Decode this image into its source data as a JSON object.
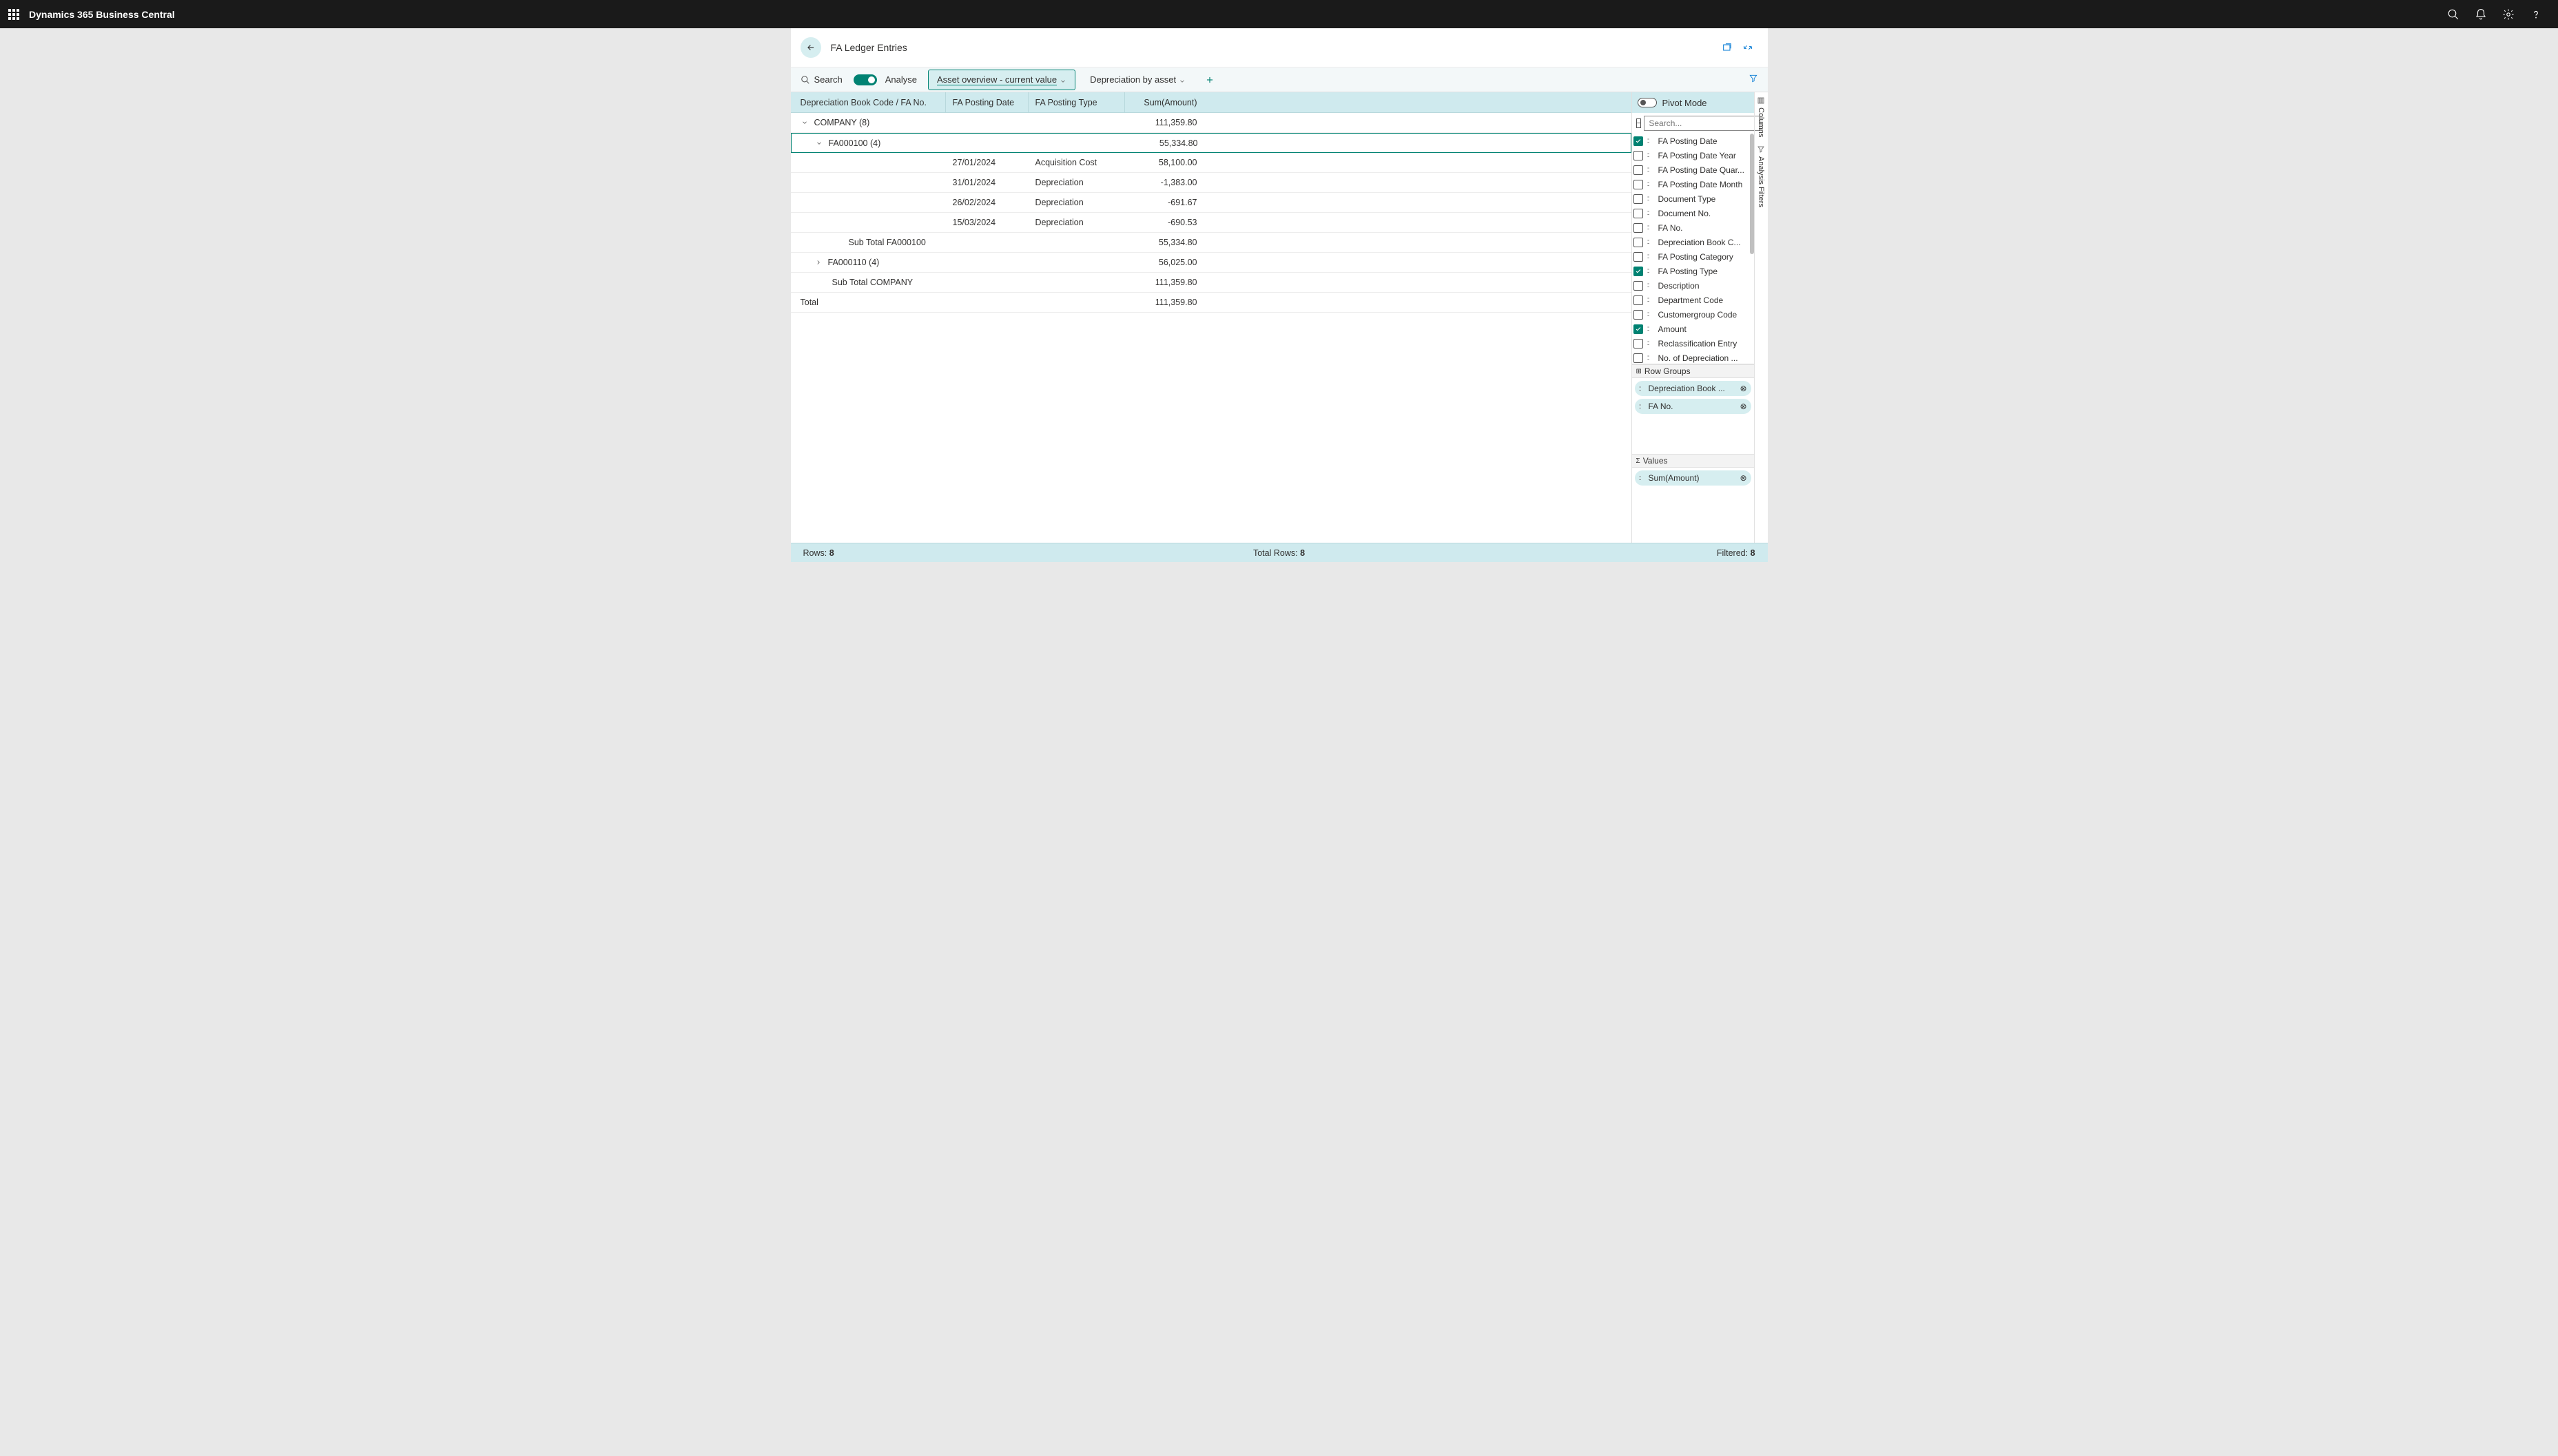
{
  "app": {
    "title": "Dynamics 365 Business Central"
  },
  "page": {
    "title": "FA Ledger Entries"
  },
  "toolbar": {
    "search": "Search",
    "analyse": "Analyse",
    "tabs": [
      {
        "label": "Asset overview - current value",
        "active": true
      },
      {
        "label": "Depreciation by asset",
        "active": false
      }
    ]
  },
  "grid": {
    "columns": [
      "Depreciation Book Code / FA No.",
      "FA Posting Date",
      "FA Posting Type",
      "Sum(Amount)"
    ],
    "rows": [
      {
        "type": "group",
        "level": 0,
        "expanded": true,
        "label": "COMPANY (8)",
        "amount": "111,359.80"
      },
      {
        "type": "group",
        "level": 1,
        "expanded": true,
        "label": "FA000100 (4)",
        "amount": "55,334.80",
        "selected": true
      },
      {
        "type": "data",
        "date": "27/01/2024",
        "ptype": "Acquisition Cost",
        "amount": "58,100.00"
      },
      {
        "type": "data",
        "date": "31/01/2024",
        "ptype": "Depreciation",
        "amount": "-1,383.00"
      },
      {
        "type": "data",
        "date": "26/02/2024",
        "ptype": "Depreciation",
        "amount": "-691.67"
      },
      {
        "type": "data",
        "date": "15/03/2024",
        "ptype": "Depreciation",
        "amount": "-690.53"
      },
      {
        "type": "subtotal",
        "level": 1,
        "label": "Sub Total FA000100",
        "amount": "55,334.80"
      },
      {
        "type": "group",
        "level": 1,
        "expanded": false,
        "label": "FA000110 (4)",
        "amount": "56,025.00"
      },
      {
        "type": "subtotal",
        "level": 0,
        "label": "Sub Total COMPANY",
        "amount": "111,359.80"
      },
      {
        "type": "total",
        "label": "Total",
        "amount": "111,359.80"
      }
    ]
  },
  "panel": {
    "pivotMode": "Pivot Mode",
    "searchPlaceholder": "Search...",
    "columns": [
      {
        "label": "FA Posting Date",
        "checked": true
      },
      {
        "label": "FA Posting Date Year",
        "checked": false
      },
      {
        "label": "FA Posting Date Quar...",
        "checked": false
      },
      {
        "label": "FA Posting Date Month",
        "checked": false
      },
      {
        "label": "Document Type",
        "checked": false
      },
      {
        "label": "Document No.",
        "checked": false
      },
      {
        "label": "FA No.",
        "checked": false
      },
      {
        "label": "Depreciation Book C...",
        "checked": false
      },
      {
        "label": "FA Posting Category",
        "checked": false
      },
      {
        "label": "FA Posting Type",
        "checked": true
      },
      {
        "label": "Description",
        "checked": false
      },
      {
        "label": "Department Code",
        "checked": false
      },
      {
        "label": "Customergroup Code",
        "checked": false
      },
      {
        "label": "Amount",
        "checked": true
      },
      {
        "label": "Reclassification Entry",
        "checked": false
      },
      {
        "label": "No. of Depreciation ...",
        "checked": false
      }
    ],
    "rowGroupsLabel": "Row Groups",
    "rowGroups": [
      {
        "label": "Depreciation Book ..."
      },
      {
        "label": "FA No."
      }
    ],
    "valuesLabel": "Values",
    "values": [
      {
        "label": "Sum(Amount)"
      }
    ]
  },
  "rail": {
    "columns": "Columns",
    "filters": "Analysis Filters"
  },
  "footer": {
    "rowsLabel": "Rows:",
    "rows": "8",
    "totalRowsLabel": "Total Rows:",
    "totalRows": "8",
    "filteredLabel": "Filtered:",
    "filtered": "8"
  }
}
